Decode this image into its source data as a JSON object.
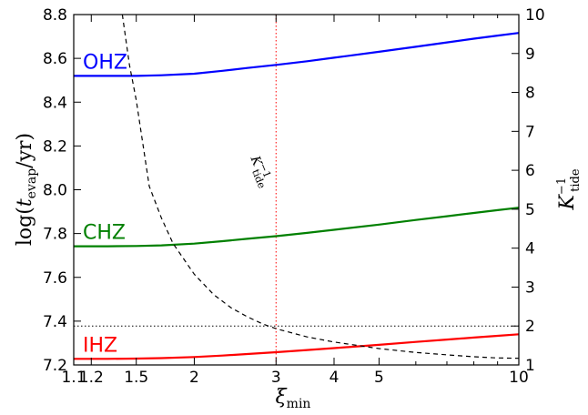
{
  "chart_data": {
    "type": "line",
    "x_scale": "log",
    "xlim": [
      1.1,
      10
    ],
    "xlabel": "ξmin",
    "x_ticks": [
      {
        "value": 1.1,
        "label": "1.1"
      },
      {
        "value": 1.2,
        "label": "1.2"
      },
      {
        "value": 1.5,
        "label": "1.5"
      },
      {
        "value": 2,
        "label": "2"
      },
      {
        "value": 3,
        "label": "3"
      },
      {
        "value": 4,
        "label": "4"
      },
      {
        "value": 5,
        "label": "5"
      },
      {
        "value": 10,
        "label": "10"
      }
    ],
    "ylabel_left": "log(t_evap/yr)",
    "ylim_left": [
      7.2,
      8.8
    ],
    "y_ticks_left": [
      "7.2",
      "7.4",
      "7.6",
      "7.8",
      "8.0",
      "8.2",
      "8.4",
      "8.6",
      "8.8"
    ],
    "ylabel_right": "K_tide^-1",
    "ylim_right": [
      1,
      10
    ],
    "y_ticks_right": [
      "1",
      "2",
      "3",
      "4",
      "5",
      "6",
      "7",
      "8",
      "9",
      "10"
    ],
    "grid": false,
    "series": [
      {
        "name": "OHZ",
        "color": "#0000ff",
        "axis": "left",
        "x": [
          1.1,
          1.2,
          1.3,
          1.5,
          1.7,
          2.0,
          2.3,
          2.6,
          3.0,
          3.5,
          4.0,
          5.0,
          6.0,
          7.0,
          8.0,
          9.0,
          10.0
        ],
        "y": [
          8.52,
          8.52,
          8.52,
          8.52,
          8.523,
          8.53,
          8.543,
          8.556,
          8.57,
          8.587,
          8.603,
          8.63,
          8.653,
          8.673,
          8.69,
          8.704,
          8.716
        ]
      },
      {
        "name": "CHZ",
        "color": "#008000",
        "axis": "left",
        "x": [
          1.1,
          1.2,
          1.3,
          1.5,
          1.7,
          2.0,
          2.3,
          2.6,
          3.0,
          3.5,
          4.0,
          5.0,
          6.0,
          7.0,
          8.0,
          9.0,
          10.0
        ],
        "y": [
          7.742,
          7.742,
          7.742,
          7.743,
          7.746,
          7.754,
          7.765,
          7.776,
          7.788,
          7.803,
          7.817,
          7.841,
          7.862,
          7.879,
          7.894,
          7.907,
          7.918
        ]
      },
      {
        "name": "IHZ",
        "color": "#ff0000",
        "axis": "left",
        "x": [
          1.1,
          1.2,
          1.3,
          1.5,
          1.7,
          2.0,
          2.3,
          2.6,
          3.0,
          3.5,
          4.0,
          5.0,
          6.0,
          7.0,
          8.0,
          9.0,
          10.0
        ],
        "y": [
          7.228,
          7.228,
          7.228,
          7.229,
          7.231,
          7.236,
          7.243,
          7.25,
          7.258,
          7.268,
          7.277,
          7.292,
          7.305,
          7.316,
          7.325,
          7.333,
          7.34
        ]
      },
      {
        "name": "K_tide^-1",
        "color": "#000000",
        "axis": "right",
        "style": "dashed",
        "x": [
          1.4,
          1.45,
          1.5,
          1.6,
          1.7,
          1.8,
          2.0,
          2.2,
          2.4,
          2.6,
          2.8,
          3.0,
          3.5,
          4.0,
          5.0,
          6.0,
          7.0,
          8.0,
          9.0,
          10.0
        ],
        "y": [
          10.0,
          8.71,
          7.8,
          5.59,
          4.77,
          4.12,
          3.33,
          2.81,
          2.47,
          2.24,
          2.06,
          1.93,
          1.72,
          1.59,
          1.42,
          1.32,
          1.26,
          1.21,
          1.18,
          1.17
        ]
      }
    ],
    "reference_lines": [
      {
        "orientation": "vertical",
        "x": 3,
        "color": "#ff0000",
        "style": "dotted"
      },
      {
        "orientation": "horizontal",
        "y_right": 2,
        "color": "#000000",
        "style": "dotted"
      }
    ],
    "annotations": [
      {
        "text": "OHZ",
        "color": "#0000ff"
      },
      {
        "text": "CHZ",
        "color": "#008000"
      },
      {
        "text": "IHZ",
        "color": "#ff0000"
      },
      {
        "text": "K_tide^-1",
        "color": "#000000"
      }
    ]
  }
}
